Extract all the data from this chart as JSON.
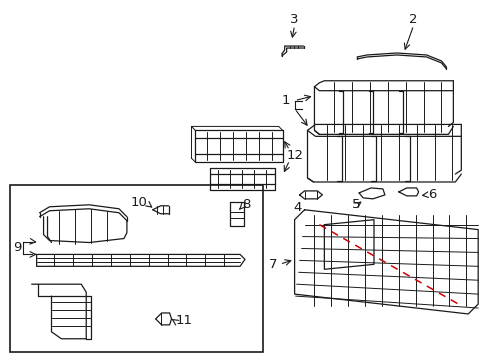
{
  "bg_color": "#ffffff",
  "lc": "#1a1a1a",
  "rc": "#cc0000",
  "fig_w": 4.89,
  "fig_h": 3.6,
  "dpi": 100
}
